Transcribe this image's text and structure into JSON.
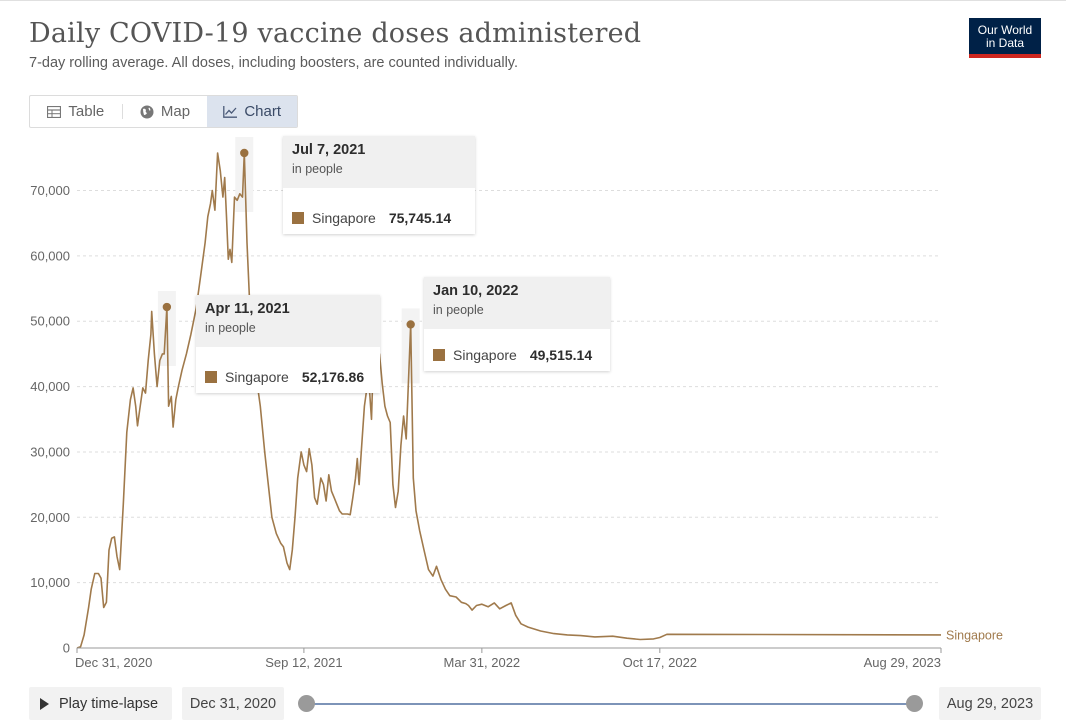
{
  "header": {
    "title": "Daily COVID-19 vaccine doses administered",
    "subtitle": "7-day rolling average. All doses, including boosters, are counted individually.",
    "logo_line1": "Our World",
    "logo_line2": "in Data"
  },
  "tabs": [
    {
      "label": "Table",
      "icon": "table-icon"
    },
    {
      "label": "Map",
      "icon": "globe-icon"
    },
    {
      "label": "Chart",
      "icon": "line-chart-icon",
      "active": true
    }
  ],
  "tooltips": [
    {
      "date": "Jul 7, 2021",
      "unit": "in people",
      "country": "Singapore",
      "value": "75,745.14"
    },
    {
      "date": "Apr 11, 2021",
      "unit": "in people",
      "country": "Singapore",
      "value": "52,176.86"
    },
    {
      "date": "Jan 10, 2022",
      "unit": "in people",
      "country": "Singapore",
      "value": "49,515.14"
    }
  ],
  "timeline": {
    "play_label": "Play time-lapse",
    "start_date": "Dec 31, 2020",
    "end_date": "Aug 29, 2023"
  },
  "colors": {
    "series": "#a07a4c",
    "marker": "#9a7140",
    "grid": "#dddddd",
    "tick_text": "#666666",
    "logo_bg": "#002147",
    "logo_accent": "#ce261e"
  },
  "chart_data": {
    "type": "line",
    "title": "Daily COVID-19 vaccine doses administered",
    "subtitle": "7-day rolling average. All doses, including boosters, are counted individually.",
    "xlabel": "",
    "ylabel": "",
    "ylim": [
      0,
      75745.14
    ],
    "yticks": [
      0,
      10000,
      20000,
      30000,
      40000,
      50000,
      60000,
      70000
    ],
    "ytick_labels": [
      "0",
      "10,000",
      "20,000",
      "30,000",
      "40,000",
      "50,000",
      "60,000",
      "70,000"
    ],
    "xticks": [
      "2020-12-31",
      "2021-09-12",
      "2022-03-31",
      "2022-10-17",
      "2023-08-29"
    ],
    "xtick_labels": [
      "Dec 31, 2020",
      "Sep 12, 2021",
      "Mar 31, 2022",
      "Oct 17, 2022",
      "Aug 29, 2023"
    ],
    "grid": "horizontal dashed",
    "highlighted_points": [
      {
        "date": "2021-04-11",
        "value": 52176.86
      },
      {
        "date": "2021-07-07",
        "value": 75745.14
      },
      {
        "date": "2022-01-10",
        "value": 49515.14
      }
    ],
    "series": [
      {
        "name": "Singapore",
        "points": [
          [
            "2020-12-31",
            0
          ],
          [
            "2021-01-04",
            200
          ],
          [
            "2021-01-08",
            2000
          ],
          [
            "2021-01-13",
            6200
          ],
          [
            "2021-01-16",
            9000
          ],
          [
            "2021-01-20",
            11400
          ],
          [
            "2021-01-24",
            11400
          ],
          [
            "2021-01-27",
            10700
          ],
          [
            "2021-01-30",
            6200
          ],
          [
            "2021-02-02",
            7000
          ],
          [
            "2021-02-05",
            15000
          ],
          [
            "2021-02-08",
            16800
          ],
          [
            "2021-02-11",
            17000
          ],
          [
            "2021-02-14",
            14000
          ],
          [
            "2021-02-17",
            12000
          ],
          [
            "2021-02-21",
            22000
          ],
          [
            "2021-02-25",
            33000
          ],
          [
            "2021-03-01",
            38000
          ],
          [
            "2021-03-04",
            39800
          ],
          [
            "2021-03-07",
            37000
          ],
          [
            "2021-03-09",
            34000
          ],
          [
            "2021-03-12",
            37000
          ],
          [
            "2021-03-15",
            39800
          ],
          [
            "2021-03-18",
            39000
          ],
          [
            "2021-03-21",
            44000
          ],
          [
            "2021-03-24",
            48000
          ],
          [
            "2021-03-25",
            51500
          ],
          [
            "2021-03-28",
            45000
          ],
          [
            "2021-03-31",
            40000
          ],
          [
            "2021-04-03",
            44000
          ],
          [
            "2021-04-06",
            45000
          ],
          [
            "2021-04-08",
            45000
          ],
          [
            "2021-04-11",
            52176.86
          ],
          [
            "2021-04-13",
            37000
          ],
          [
            "2021-04-16",
            38500
          ],
          [
            "2021-04-18",
            33800
          ],
          [
            "2021-04-21",
            38000
          ],
          [
            "2021-04-24",
            40000
          ],
          [
            "2021-04-28",
            42500
          ],
          [
            "2021-05-03",
            45000
          ],
          [
            "2021-05-08",
            48000
          ],
          [
            "2021-05-14",
            52000
          ],
          [
            "2021-05-19",
            57000
          ],
          [
            "2021-05-24",
            62000
          ],
          [
            "2021-05-27",
            66000
          ],
          [
            "2021-05-30",
            68000
          ],
          [
            "2021-06-01",
            70000
          ],
          [
            "2021-06-04",
            67000
          ],
          [
            "2021-06-07",
            75745.14
          ],
          [
            "2021-06-10",
            73000
          ],
          [
            "2021-06-13",
            69000
          ],
          [
            "2021-06-15",
            72000
          ],
          [
            "2021-06-17",
            66000
          ],
          [
            "2021-06-19",
            59500
          ],
          [
            "2021-06-21",
            61000
          ],
          [
            "2021-06-23",
            59000
          ],
          [
            "2021-06-26",
            69000
          ],
          [
            "2021-06-29",
            68500
          ],
          [
            "2021-07-02",
            69500
          ],
          [
            "2021-07-05",
            69000
          ],
          [
            "2021-07-07",
            75745.14
          ],
          [
            "2021-07-10",
            62000
          ],
          [
            "2021-07-13",
            53000
          ],
          [
            "2021-07-16",
            46000
          ],
          [
            "2021-07-19",
            41000
          ],
          [
            "2021-07-22",
            40000
          ],
          [
            "2021-07-25",
            37000
          ],
          [
            "2021-07-30",
            30000
          ],
          [
            "2021-08-03",
            25000
          ],
          [
            "2021-08-07",
            20000
          ],
          [
            "2021-08-12",
            17500
          ],
          [
            "2021-08-17",
            16000
          ],
          [
            "2021-08-20",
            15500
          ],
          [
            "2021-08-24",
            13000
          ],
          [
            "2021-08-27",
            12000
          ],
          [
            "2021-08-30",
            15000
          ],
          [
            "2021-09-02",
            20000
          ],
          [
            "2021-09-05",
            26000
          ],
          [
            "2021-09-09",
            30000
          ],
          [
            "2021-09-12",
            28000
          ],
          [
            "2021-09-15",
            27000
          ],
          [
            "2021-09-18",
            30500
          ],
          [
            "2021-09-21",
            28000
          ],
          [
            "2021-09-24",
            23000
          ],
          [
            "2021-09-27",
            22000
          ],
          [
            "2021-10-01",
            26000
          ],
          [
            "2021-10-04",
            25000
          ],
          [
            "2021-10-07",
            22500
          ],
          [
            "2021-10-10",
            26500
          ],
          [
            "2021-10-13",
            24000
          ],
          [
            "2021-10-16",
            23000
          ],
          [
            "2021-10-19",
            22000
          ],
          [
            "2021-10-22",
            21000
          ],
          [
            "2021-10-25",
            20500
          ],
          [
            "2021-10-28",
            20500
          ],
          [
            "2021-10-31",
            20500
          ],
          [
            "2021-11-03",
            20400
          ],
          [
            "2021-11-06",
            23000
          ],
          [
            "2021-11-09",
            26000
          ],
          [
            "2021-11-11",
            29000
          ],
          [
            "2021-11-13",
            25000
          ],
          [
            "2021-11-16",
            31000
          ],
          [
            "2021-11-19",
            37000
          ],
          [
            "2021-11-22",
            40000
          ],
          [
            "2021-11-25",
            39000
          ],
          [
            "2021-11-27",
            35000
          ],
          [
            "2021-11-29",
            44000
          ],
          [
            "2021-12-01",
            48000
          ],
          [
            "2021-12-03",
            42500
          ],
          [
            "2021-12-06",
            45000
          ],
          [
            "2021-12-09",
            40500
          ],
          [
            "2021-12-12",
            37000
          ],
          [
            "2021-12-15",
            35500
          ],
          [
            "2021-12-18",
            34500
          ],
          [
            "2021-12-21",
            25000
          ],
          [
            "2021-12-24",
            21500
          ],
          [
            "2021-12-27",
            24000
          ],
          [
            "2021-12-30",
            31000
          ],
          [
            "2022-01-02",
            35500
          ],
          [
            "2022-01-05",
            32000
          ],
          [
            "2022-01-10",
            49515.14
          ],
          [
            "2022-01-13",
            26000
          ],
          [
            "2022-01-16",
            21000
          ],
          [
            "2022-01-20",
            18000
          ],
          [
            "2022-01-25",
            15000
          ],
          [
            "2022-01-30",
            12000
          ],
          [
            "2022-02-04",
            11000
          ],
          [
            "2022-02-08",
            12500
          ],
          [
            "2022-02-13",
            10500
          ],
          [
            "2022-02-18",
            9000
          ],
          [
            "2022-02-23",
            8000
          ],
          [
            "2022-03-02",
            7800
          ],
          [
            "2022-03-08",
            7000
          ],
          [
            "2022-03-13",
            6800
          ],
          [
            "2022-03-16",
            6500
          ],
          [
            "2022-03-20",
            5800
          ],
          [
            "2022-03-25",
            6500
          ],
          [
            "2022-03-31",
            6700
          ],
          [
            "2022-04-07",
            6300
          ],
          [
            "2022-04-14",
            6900
          ],
          [
            "2022-04-20",
            6000
          ],
          [
            "2022-04-27",
            6500
          ],
          [
            "2022-05-03",
            6900
          ],
          [
            "2022-05-08",
            5000
          ],
          [
            "2022-05-14",
            3700
          ],
          [
            "2022-05-22",
            3200
          ],
          [
            "2022-06-05",
            2600
          ],
          [
            "2022-06-20",
            2200
          ],
          [
            "2022-07-05",
            2000
          ],
          [
            "2022-07-20",
            1900
          ],
          [
            "2022-08-05",
            1700
          ],
          [
            "2022-08-25",
            1800
          ],
          [
            "2022-09-10",
            1500
          ],
          [
            "2022-09-25",
            1300
          ],
          [
            "2022-10-10",
            1400
          ],
          [
            "2022-10-17",
            1600
          ],
          [
            "2022-10-25",
            2100
          ],
          [
            "2023-08-29",
            2000
          ]
        ]
      }
    ]
  }
}
